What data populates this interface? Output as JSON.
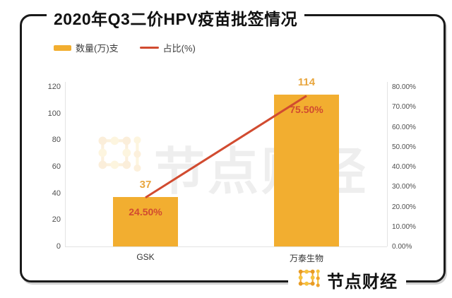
{
  "title": "2020年Q3二价HPV疫苗批签情况",
  "legend": {
    "quantity": {
      "label": "数量(万)支"
    },
    "ratio": {
      "label": "占比(%)"
    }
  },
  "watermark": {
    "text": "节点财经"
  },
  "brand": {
    "text": "节点财经"
  },
  "colors": {
    "bar": "#F2AE30",
    "line": "#D14B30",
    "value_label": "#E8A63E",
    "pct_label": "#D14B30",
    "frame": "#1A1A1A",
    "axis_line": "#E3E3E3",
    "tick_text": "#4D4D4D"
  },
  "chart_data": {
    "type": "bar",
    "title": "2020年Q3二价HPV疫苗批签情况",
    "categories": [
      "GSK",
      "万泰生物"
    ],
    "series": [
      {
        "name": "数量(万)支",
        "type": "bar",
        "y_axis": "left",
        "values": [
          37,
          114
        ],
        "data_labels": [
          "37",
          "114"
        ],
        "color": "#F2AE30"
      },
      {
        "name": "占比(%)",
        "type": "line",
        "y_axis": "right",
        "values": [
          24.5,
          75.5
        ],
        "data_labels": [
          "24.50%",
          "75.50%"
        ],
        "color": "#D14B30"
      }
    ],
    "left_axis": {
      "min": 0,
      "max": 120,
      "step": 20,
      "tick_labels": [
        "0",
        "20",
        "40",
        "60",
        "80",
        "100",
        "120"
      ]
    },
    "right_axis": {
      "min": 0,
      "max": 80,
      "step": 10,
      "tick_labels": [
        "0.00%",
        "10.00%",
        "20.00%",
        "30.00%",
        "40.00%",
        "50.00%",
        "60.00%",
        "70.00%",
        "80.00%"
      ]
    },
    "grid": false,
    "legend_position": "top-left"
  }
}
